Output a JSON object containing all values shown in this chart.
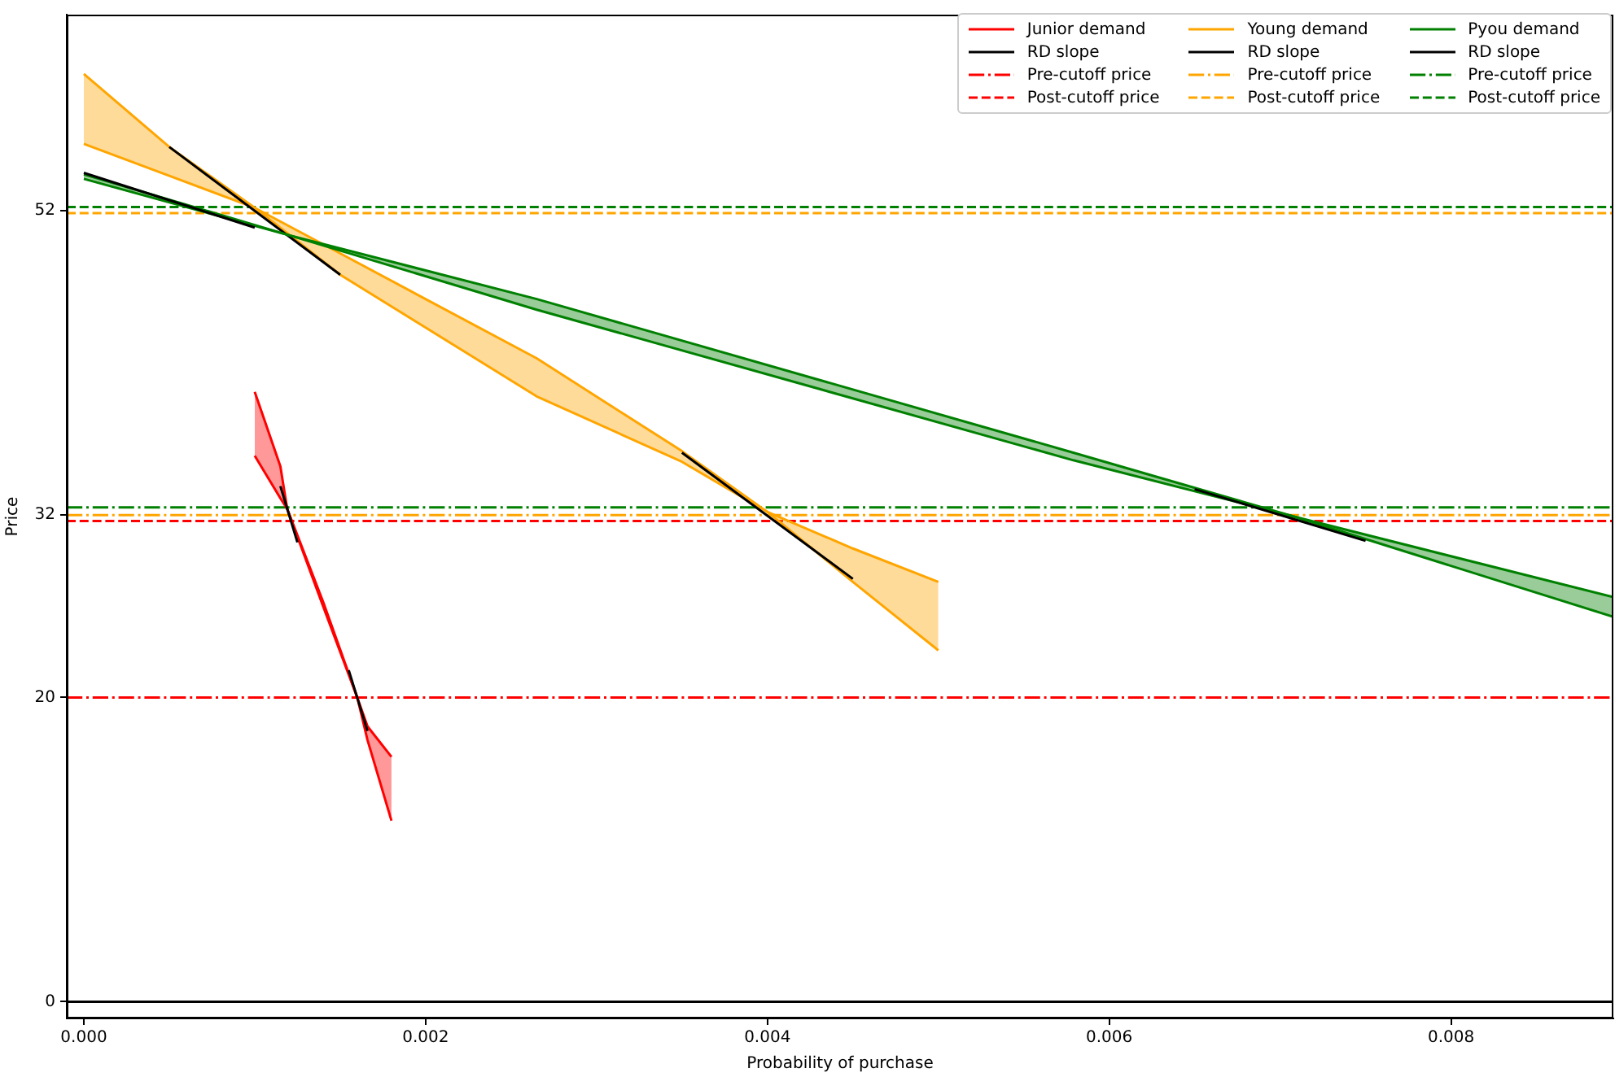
{
  "chart_data": {
    "type": "line",
    "xlabel": "Probability of purchase",
    "ylabel": "Price",
    "xlim": [
      -0.0001,
      0.00895
    ],
    "ylim": [
      -1.1,
      64.9
    ],
    "xticks": [
      {
        "value": 0,
        "label": "0.000"
      },
      {
        "value": 0.002,
        "label": "0.002"
      },
      {
        "value": 0.004,
        "label": "0.004"
      },
      {
        "value": 0.006,
        "label": "0.006"
      },
      {
        "value": 0.008,
        "label": "0.008"
      }
    ],
    "yticks": [
      0,
      20,
      32,
      52
    ],
    "grid": false,
    "legend": "top right",
    "series": [
      {
        "name": "Junior demand",
        "color": "#ff0000",
        "x": [
          0.001,
          0.00115,
          0.00119,
          0.0014,
          0.0016,
          0.00166,
          0.0018
        ],
        "values": [
          40.1,
          35.2,
          32.4,
          26.3,
          20,
          17.2,
          11.9
        ],
        "lower": [
          35.9,
          33.1,
          32.4,
          26.0,
          20,
          18.1,
          16.1
        ],
        "upper": [
          40.1,
          35.2,
          32.4,
          26.3,
          20,
          17.2,
          11.9
        ]
      },
      {
        "color": "#ff0000",
        "x": [
          0.001,
          0.00115,
          0.00119,
          0.0014,
          0.0016,
          0.00166,
          0.0018
        ],
        "values": [
          35.9,
          33.1,
          32.4,
          26.0,
          20,
          18.1,
          16.1
        ]
      },
      {
        "name": "RD slope",
        "color": "#000000",
        "x": [
          0.00115,
          0.00125,
          0.0014,
          0.00155,
          0.00166
        ],
        "values": [
          33.9,
          30.2,
          null,
          21.8,
          17.8
        ]
      },
      {
        "name": "Young demand",
        "color": "#ffa500",
        "x": [
          0,
          0.0005,
          0.001,
          0.0015,
          0.00265,
          0.0035,
          0.004,
          0.0045,
          0.005
        ],
        "values": [
          61,
          56.2,
          52.2,
          47.8,
          39.8,
          35.5,
          32.2,
          27.6,
          23.1
        ],
        "lower": [
          56.4,
          54.3,
          52.2,
          49.2,
          42.3,
          36.2,
          32.2,
          29.8,
          27.6
        ],
        "upper": [
          61,
          56.2,
          52.2,
          47.8,
          39.8,
          35.5,
          32.2,
          27.6,
          23.1
        ]
      },
      {
        "color": "#ffa500",
        "x": [
          0,
          0.0005,
          0.001,
          0.0015,
          0.00265,
          0.0035,
          0.004,
          0.0045,
          0.005
        ],
        "values": [
          56.4,
          54.3,
          52.2,
          49.2,
          42.3,
          36.2,
          32.2,
          29.8,
          27.6
        ]
      },
      {
        "name": "RD slope",
        "color": "#000000",
        "x": [
          0.0005,
          0.0015,
          0.0025,
          0.0035,
          0.0045
        ],
        "values": [
          56.2,
          47.8,
          null,
          36.1,
          27.8
        ]
      },
      {
        "name": "Pyou demand",
        "color": "#008000",
        "x": [
          0,
          0.0012,
          0.00265,
          0.00579,
          0.00708,
          0.00895
        ],
        "values": [
          54.4,
          50.4,
          45.5,
          35.6,
          31.9,
          25.3
        ],
        "lower": [
          54.1,
          50.4,
          46.2,
          36.1,
          31.9,
          26.6
        ],
        "upper": [
          54.4,
          50.4,
          45.5,
          35.6,
          31.9,
          25.3
        ]
      },
      {
        "color": "#008000",
        "x": [
          0,
          0.0012,
          0.00265,
          0.00579,
          0.00708,
          0.00895
        ],
        "values": [
          54.1,
          50.4,
          46.2,
          36.1,
          31.9,
          26.6
        ]
      },
      {
        "name": "RD slope",
        "color": "#000000",
        "x": [
          0,
          0.001,
          0.004,
          0.0065,
          0.0075
        ],
        "values": [
          54.5,
          50.9,
          null,
          33.7,
          30.3
        ]
      }
    ],
    "ref_lines": [
      {
        "axis": "y",
        "value": 20,
        "label": "Pre-cutoff price",
        "color": "#ff0000",
        "line_style": "dashdot"
      },
      {
        "axis": "y",
        "value": 31.6,
        "label": "Post-cutoff price",
        "color": "#ff0000",
        "line_style": "dashed"
      },
      {
        "axis": "y",
        "value": 32,
        "label": "Pre-cutoff price",
        "color": "#ffa500",
        "line_style": "dashdot"
      },
      {
        "axis": "y",
        "value": 51.85,
        "label": "Post-cutoff price",
        "color": "#ffa500",
        "line_style": "dashed"
      },
      {
        "axis": "y",
        "value": 32.5,
        "label": "Pre-cutoff price",
        "color": "#008000",
        "line_style": "dashdot"
      },
      {
        "axis": "y",
        "value": 52.25,
        "label": "Post-cutoff price",
        "color": "#008000",
        "line_style": "dashed"
      },
      {
        "axis": "y",
        "value": 0,
        "color": "#000000",
        "line_style": "solid"
      }
    ]
  }
}
